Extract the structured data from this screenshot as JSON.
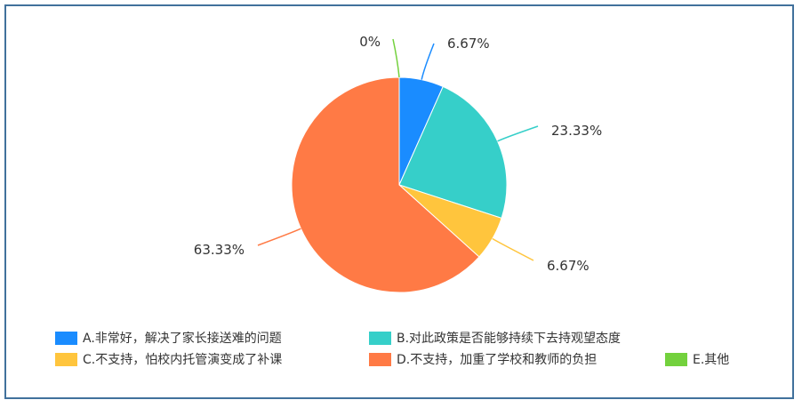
{
  "chart_data": {
    "type": "pie",
    "title": "",
    "slices": [
      {
        "name": "A.非常好，解决了家长接送难的问题",
        "value": 6.67,
        "label": "6.67%",
        "color": "#1a8cff"
      },
      {
        "name": "B.对此政策是否能够持续下去持观望态度",
        "value": 23.33,
        "label": "23.33%",
        "color": "#36cfc9"
      },
      {
        "name": "C.不支持，怕校内托管演变成了补课",
        "value": 6.67,
        "label": "6.67%",
        "color": "#ffc53d"
      },
      {
        "name": "D.不支持，加重了学校和教师的负担",
        "value": 63.33,
        "label": "63.33%",
        "color": "#ff7a45"
      },
      {
        "name": "E.其他",
        "value": 0,
        "label": "0%",
        "color": "#73d13d"
      }
    ],
    "legend_position": "bottom"
  }
}
